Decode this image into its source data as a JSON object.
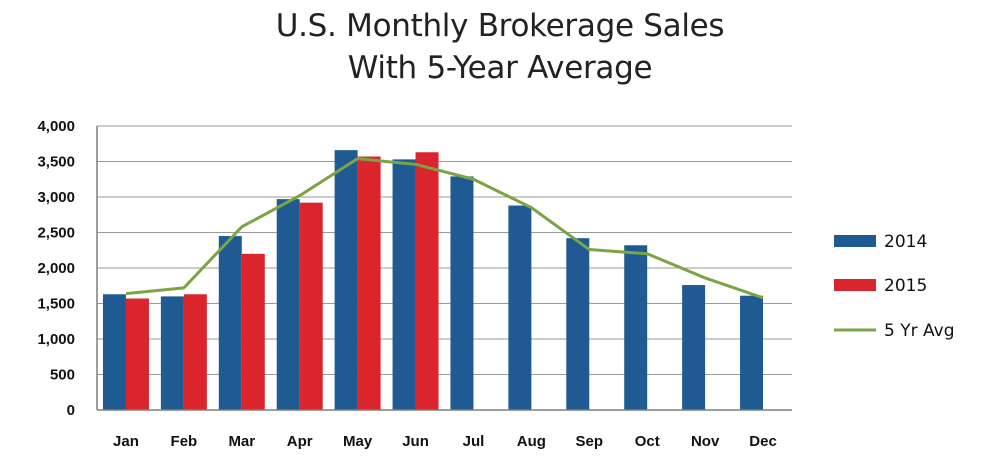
{
  "chart_data": {
    "type": "bar",
    "title": "U.S. Monthly Brokerage Sales",
    "subtitle": "With 5-Year Average",
    "categories": [
      "Jan",
      "Feb",
      "Mar",
      "Apr",
      "May",
      "Jun",
      "Jul",
      "Aug",
      "Sep",
      "Oct",
      "Nov",
      "Dec"
    ],
    "y_ticks": [
      "0",
      "500",
      "1,000",
      "1,500",
      "2,000",
      "2,500",
      "3,000",
      "3,500",
      "4,000"
    ],
    "ylim": [
      0,
      4000
    ],
    "grid": true,
    "legend_position": "right",
    "series": [
      {
        "name": "2014",
        "kind": "bar",
        "color": "#1f5b92",
        "values": [
          1630,
          1600,
          2450,
          2970,
          3660,
          3530,
          3290,
          2880,
          2420,
          2320,
          1760,
          1610
        ]
      },
      {
        "name": "2015",
        "kind": "bar",
        "color": "#d9252b",
        "values": [
          1570,
          1630,
          2200,
          2920,
          3570,
          3630,
          null,
          null,
          null,
          null,
          null,
          null
        ]
      },
      {
        "name": "5 Yr Avg",
        "kind": "line",
        "color": "#7ca444",
        "values": [
          1640,
          1720,
          2580,
          3020,
          3540,
          3460,
          3250,
          2850,
          2260,
          2200,
          1860,
          1580
        ]
      }
    ]
  }
}
